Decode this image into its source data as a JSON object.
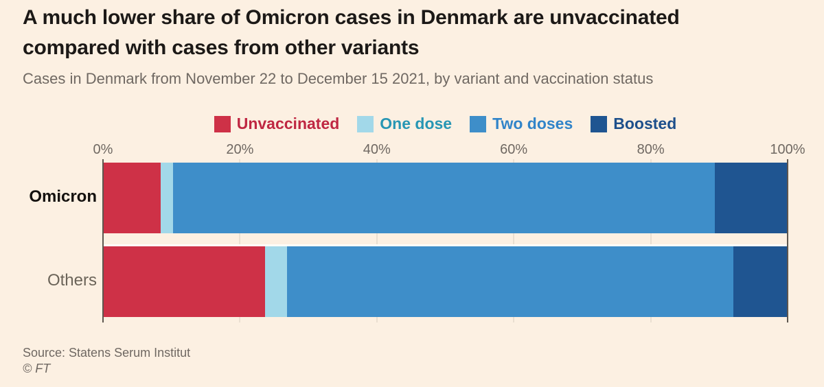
{
  "header": {
    "title": "A much lower share of Omicron cases in Denmark are unvaccinated compared with cases from other variants",
    "title_line1": "A much lower share of Omicron cases in Denmark are unvaccinated",
    "title_line2": "compared with cases from other variants",
    "subtitle": "Cases in Denmark from November 22 to December 15 2021, by variant and vaccination status"
  },
  "legend": [
    {
      "label": "Unvaccinated",
      "swatch": "#ce3147",
      "text_color": "#bf2742"
    },
    {
      "label": "One dose",
      "swatch": "#a2d8e9",
      "text_color": "#2796b4"
    },
    {
      "label": "Two doses",
      "swatch": "#3e8ec9",
      "text_color": "#3184c9"
    },
    {
      "label": "Boosted",
      "swatch": "#1f5591",
      "text_color": "#1d4f8b"
    }
  ],
  "chart_data": {
    "type": "bar",
    "orientation": "horizontal",
    "stacked": true,
    "title": "A much lower share of Omicron cases in Denmark are unvaccinated compared with cases from other variants",
    "subtitle": "Cases in Denmark from November 22 to December 15 2021, by variant and vaccination status",
    "categories": [
      "Omicron",
      "Others"
    ],
    "series": [
      {
        "name": "Unvaccinated",
        "color": "#ce3147",
        "values": [
          8.4,
          23.7
        ]
      },
      {
        "name": "One dose",
        "color": "#a2d8e9",
        "values": [
          1.8,
          3.2
        ]
      },
      {
        "name": "Two doses",
        "color": "#3e8ec9",
        "values": [
          79.2,
          65.2
        ]
      },
      {
        "name": "Boosted",
        "color": "#1f5591",
        "values": [
          10.6,
          7.9
        ]
      }
    ],
    "x_axis": {
      "ticks": [
        "0%",
        "20%",
        "40%",
        "60%",
        "80%",
        "100%"
      ],
      "tick_values": [
        0,
        20,
        40,
        60,
        80,
        100
      ],
      "min": 0,
      "max": 100,
      "unit": "%"
    },
    "grid": "ticks-and-gaps-only",
    "legend_position": "top"
  },
  "footer": {
    "source": "Source: Statens Serum Institut",
    "copyright": "© FT"
  },
  "colors": {
    "background": "#fcf0e2",
    "title_text": "#1c1917",
    "secondary_text": "#6f6862",
    "axis_line": "#5e574f",
    "gridline": "#d9cec0",
    "category_omicron_text": "#14110f",
    "category_others_text": "#6b6459"
  }
}
